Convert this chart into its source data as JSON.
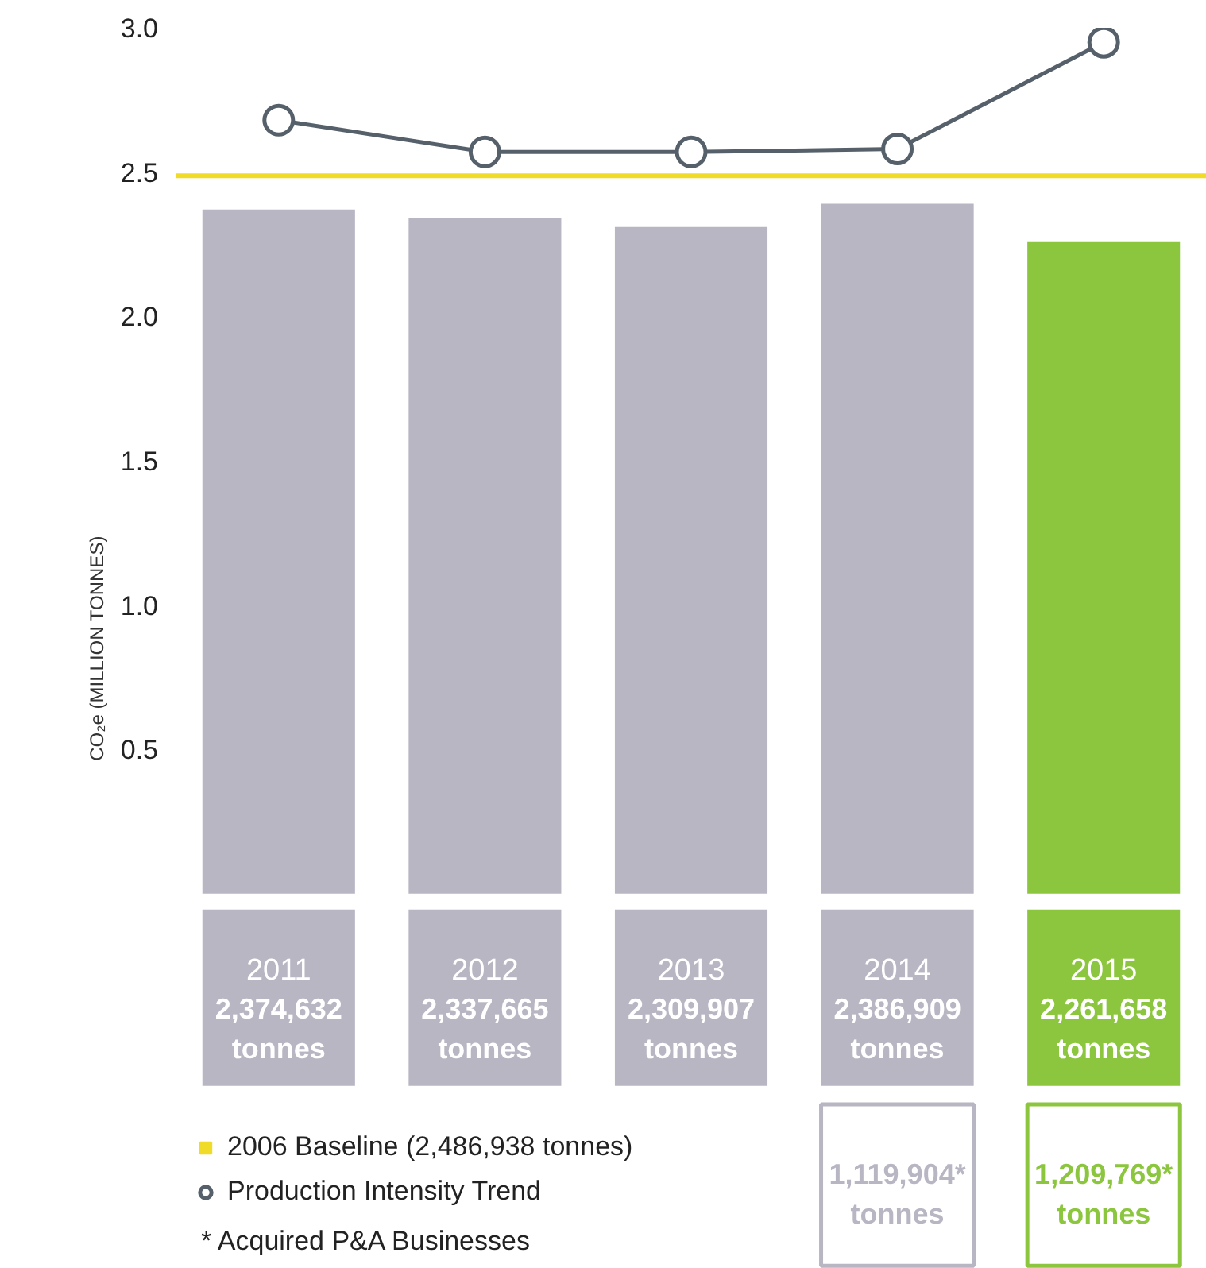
{
  "chart_data": {
    "type": "bar",
    "ylabel": "CO₂e (MILLION TONNES)",
    "categories": [
      "2011",
      "2012",
      "2013",
      "2014",
      "2015"
    ],
    "values": [
      2.37,
      2.34,
      2.31,
      2.39,
      2.26
    ],
    "colors": [
      "#b8b6c3",
      "#b8b6c3",
      "#b8b6c3",
      "#b8b6c3",
      "#8cc63f"
    ],
    "series": [
      {
        "name": "Production Intensity Trend",
        "type": "line",
        "color": "#55606b",
        "marker": "circle",
        "values": [
          2.68,
          2.57,
          2.57,
          2.58,
          2.95
        ]
      }
    ],
    "ref_lines": [
      {
        "axis": "y",
        "value": 2.486938,
        "label": "2006 Baseline (2,486,938 tonnes)",
        "color": "#f0dc28"
      }
    ],
    "annotations": [
      "2,374,632\ntonnes",
      "2,337,665\ntonnes",
      "2,309,907\ntonnes",
      "2,386,909\ntonnes",
      "2,261,658\ntonnes",
      "1,119,904*\ntonnes",
      "1,209,769*\ntonnes",
      "*  Acquired P&A Businesses"
    ],
    "ylim": [
      0,
      3.0
    ],
    "yticks": [
      {
        "value": 0.5,
        "label": "0.5"
      },
      {
        "value": 1.0,
        "label": "1.0"
      },
      {
        "value": 1.5,
        "label": "1.5"
      },
      {
        "value": 2.0,
        "label": "2.0"
      },
      {
        "value": 2.5,
        "label": "2.5"
      },
      {
        "value": 3.0,
        "label": "3.0"
      }
    ],
    "grid": false,
    "legend": "bottom left"
  }
}
